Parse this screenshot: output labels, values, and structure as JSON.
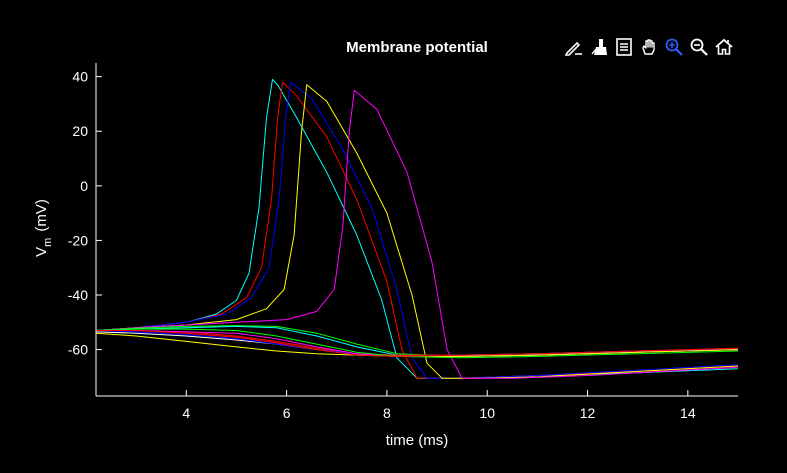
{
  "toolbar": {
    "buttons": [
      {
        "name": "edit-plot-icon"
      },
      {
        "name": "brush-icon"
      },
      {
        "name": "legend-icon"
      },
      {
        "name": "pan-hand-icon"
      },
      {
        "name": "zoom-in-icon"
      },
      {
        "name": "zoom-out-icon"
      },
      {
        "name": "home-icon"
      }
    ],
    "accent_color": "#2f5bff"
  },
  "chart_data": {
    "type": "line",
    "title": "Membrane potential",
    "xlabel": "time (ms)",
    "ylabel_main": "V",
    "ylabel_sub": "m",
    "ylabel_unit": "(mV)",
    "xlim": [
      2.2,
      15.0
    ],
    "ylim": [
      -77,
      45
    ],
    "xticks": [
      4,
      6,
      8,
      10,
      12,
      14
    ],
    "yticks": [
      -60,
      -40,
      -20,
      0,
      20,
      40
    ],
    "grid": false,
    "background": "#000000",
    "series": [
      {
        "color": "#00ffff",
        "x": [
          2.2,
          3,
          4,
          4.6,
          5.0,
          5.25,
          5.45,
          5.6,
          5.72,
          5.82,
          6.2,
          6.8,
          7.4,
          7.9,
          8.2,
          8.6,
          9.5,
          11,
          13,
          15
        ],
        "y": [
          -53,
          -52,
          -50,
          -47,
          -42,
          -32,
          -8,
          25,
          39,
          37,
          25,
          5,
          -18,
          -42,
          -63,
          -70.5,
          -70.5,
          -69.5,
          -68.5,
          -67
        ]
      },
      {
        "color": "#ff0000",
        "x": [
          2.2,
          3,
          4,
          4.7,
          5.2,
          5.5,
          5.7,
          5.82,
          5.92,
          6.2,
          6.8,
          7.4,
          8.0,
          8.3,
          8.6,
          9.5,
          11,
          13,
          15
        ],
        "y": [
          -53,
          -52,
          -50,
          -47,
          -41,
          -30,
          -5,
          25,
          38,
          33,
          18,
          -5,
          -35,
          -60,
          -70.5,
          -70.5,
          -69.5,
          -68,
          -66
        ]
      },
      {
        "color": "#0000ff",
        "x": [
          2.2,
          3,
          4,
          4.8,
          5.3,
          5.65,
          5.85,
          5.98,
          6.08,
          6.5,
          7.1,
          7.7,
          8.2,
          8.5,
          8.8,
          9.5,
          11,
          13,
          15
        ],
        "y": [
          -53,
          -52,
          -50,
          -47,
          -41,
          -30,
          -5,
          25,
          38,
          32,
          14,
          -8,
          -38,
          -63,
          -70.5,
          -70.5,
          -69.5,
          -67.5,
          -65.5
        ]
      },
      {
        "color": "#ffff00",
        "x": [
          2.2,
          3,
          4,
          5,
          5.6,
          5.95,
          6.15,
          6.3,
          6.4,
          6.8,
          7.4,
          8.0,
          8.5,
          8.8,
          9.1,
          9.8,
          11,
          13,
          15
        ],
        "y": [
          -53,
          -52,
          -51,
          -49,
          -45,
          -38,
          -18,
          20,
          37,
          31,
          12,
          -10,
          -40,
          -65,
          -70.5,
          -70.5,
          -70,
          -68,
          -66
        ]
      },
      {
        "color": "#ff00ff",
        "x": [
          2.2,
          3,
          4,
          5,
          6,
          6.6,
          6.95,
          7.12,
          7.25,
          7.35,
          7.8,
          8.4,
          8.9,
          9.2,
          9.5,
          10.5,
          12,
          13.5,
          15
        ],
        "y": [
          -53,
          -52,
          -51,
          -50,
          -49,
          -46,
          -38,
          -15,
          20,
          35,
          28,
          5,
          -28,
          -60,
          -70.5,
          -70.5,
          -69.5,
          -68,
          -66.5
        ]
      },
      {
        "color": "#00ff00",
        "x": [
          2.2,
          3,
          4,
          5,
          5.8,
          6.6,
          7.4,
          8.2,
          9.5,
          11,
          13,
          15
        ],
        "y": [
          -53,
          -52.2,
          -51.5,
          -51.2,
          -51.5,
          -54,
          -58,
          -61.5,
          -62.5,
          -62,
          -61,
          -60
        ]
      },
      {
        "color": "#00ffff",
        "x": [
          2.2,
          3,
          4,
          5,
          5.8,
          6.6,
          7.4,
          8.2,
          9.5,
          11,
          13,
          15
        ],
        "y": [
          -53,
          -52.5,
          -52,
          -51.5,
          -52,
          -55,
          -59,
          -62,
          -62.5,
          -62,
          -61,
          -60
        ]
      },
      {
        "color": "#ff0000",
        "x": [
          2.2,
          3,
          4,
          5,
          5.8,
          6.6,
          7.4,
          8.2,
          9.5,
          11,
          13,
          15
        ],
        "y": [
          -53,
          -53,
          -53.5,
          -55,
          -57,
          -59.5,
          -61.5,
          -62,
          -62,
          -61.5,
          -60.5,
          -59.5
        ]
      },
      {
        "color": "#ffffff",
        "x": [
          2.2,
          3,
          4,
          5,
          5.8,
          6.6,
          7.4,
          8.2,
          9.5,
          11,
          13,
          15
        ],
        "y": [
          -53.5,
          -54,
          -55,
          -56.5,
          -58,
          -60,
          -61.5,
          -62.5,
          -62,
          -61.5,
          -60.5,
          -60
        ]
      },
      {
        "color": "#0000ff",
        "x": [
          2.2,
          3,
          4,
          5,
          5.8,
          6.6,
          7.4,
          8.2,
          9.5,
          11,
          13,
          15
        ],
        "y": [
          -53,
          -53.5,
          -54.5,
          -56,
          -58,
          -60,
          -61.5,
          -62.5,
          -62,
          -61.5,
          -60.5,
          -60
        ]
      },
      {
        "color": "#ff00ff",
        "x": [
          2.2,
          3,
          4,
          5,
          5.8,
          6.6,
          7.4,
          8.2,
          9.5,
          11,
          13,
          15
        ],
        "y": [
          -53,
          -53,
          -53.5,
          -54,
          -56,
          -59,
          -61.5,
          -62.5,
          -62.5,
          -62,
          -61,
          -60
        ]
      },
      {
        "color": "#ffff00",
        "x": [
          2.2,
          3,
          4,
          5,
          5.8,
          6.6,
          7.4,
          8.2,
          9.5,
          11,
          13,
          15
        ],
        "y": [
          -54,
          -55,
          -57,
          -59,
          -60.5,
          -61.5,
          -62,
          -62.5,
          -62.5,
          -62,
          -61,
          -60
        ]
      },
      {
        "color": "#00ff00",
        "x": [
          2.2,
          3,
          4,
          5,
          5.8,
          6.6,
          7.4,
          8.2,
          9.5,
          11,
          13,
          15
        ],
        "y": [
          -53,
          -52.5,
          -52.5,
          -53,
          -55,
          -58,
          -61,
          -62.5,
          -63,
          -62.5,
          -61.5,
          -60.5
        ]
      },
      {
        "color": "#ff0000",
        "x": [
          2.2,
          3,
          4,
          5,
          5.8,
          6.6,
          7.4,
          8.2,
          9.5,
          11,
          13,
          15
        ],
        "y": [
          -53,
          -53,
          -54,
          -55.5,
          -57.5,
          -60,
          -62,
          -62.5,
          -62,
          -61.5,
          -60.5,
          -59.5
        ]
      }
    ]
  }
}
